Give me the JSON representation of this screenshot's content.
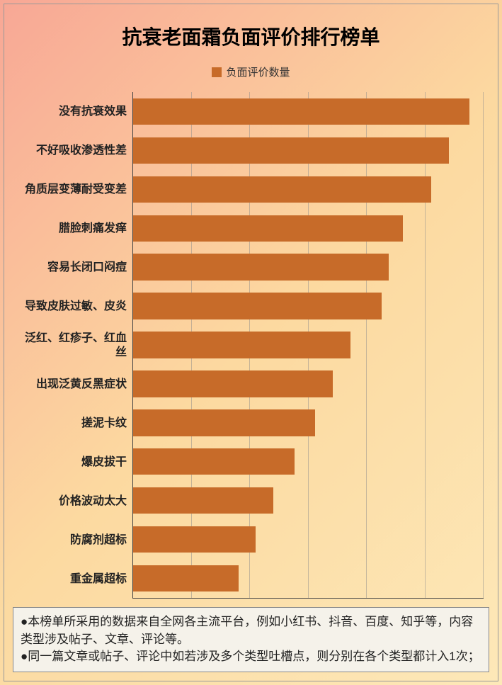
{
  "chart": {
    "type": "bar-horizontal",
    "title": "抗衰老面霜负面评价排行榜单",
    "legend_label": "负面评价数量",
    "bar_color": "#c76b29",
    "grid_color": "rgba(140,140,140,0.5)",
    "axis_color": "#444",
    "background_gradient": [
      "#f8a795",
      "#fcd9a0",
      "#fde8b8"
    ],
    "xlim": [
      0,
      100
    ],
    "grid_count": 6,
    "label_fontsize": 16,
    "label_fontweight": "bold",
    "title_fontsize": 28,
    "categories": [
      "没有抗衰效果",
      "不好吸收渗透性差",
      "角质层变薄耐受变差",
      "腊脸刺痛发痒",
      "容易长闭口闷痘",
      "导致皮肤过敏、皮炎",
      "泛红、红疹子、红血丝",
      "出现泛黄反黑症状",
      "搓泥卡纹",
      "爆皮拔干",
      "价格波动太大",
      "防腐剂超标",
      "重金属超标"
    ],
    "values": [
      96,
      90,
      85,
      77,
      73,
      71,
      62,
      57,
      52,
      46,
      40,
      35,
      30
    ]
  },
  "footnote": {
    "line1": "●本榜单所采用的数据来自全网各主流平台，例如小红书、抖音、百度、知乎等，内容类型涉及帖子、文章、评论等。",
    "line2": "●同一篇文章或帖子、评论中如若涉及多个类型吐槽点，则分别在各个类型都计入1次；",
    "background_color": "#f5f2ea",
    "border_color": "#888",
    "fontsize": 17
  }
}
